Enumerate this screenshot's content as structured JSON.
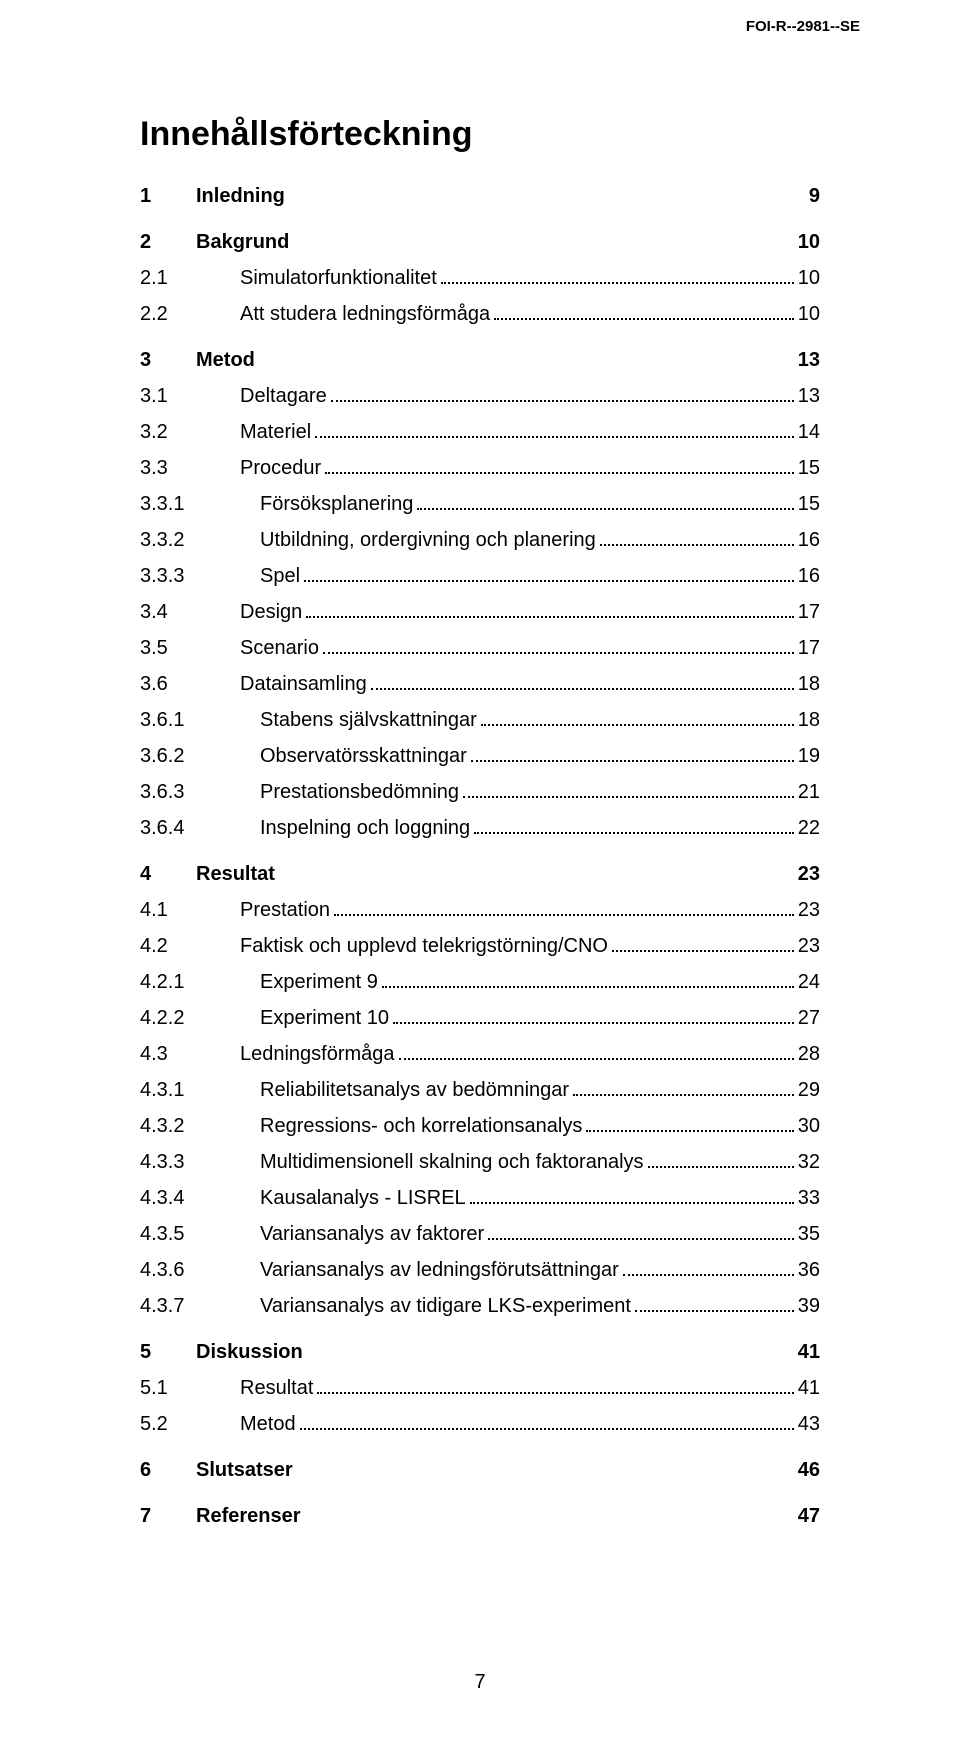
{
  "header": "FOI-R--2981--SE",
  "title": "Innehållsförteckning",
  "page_number": "7",
  "toc": [
    {
      "level": 1,
      "num": "1",
      "label": "Inledning",
      "page": "9",
      "bold": true,
      "dots": false
    },
    {
      "level": 1,
      "num": "2",
      "label": "Bakgrund",
      "page": "10",
      "bold": true,
      "dots": false
    },
    {
      "level": 2,
      "num": "2.1",
      "label": "Simulatorfunktionalitet",
      "page": "10",
      "bold": false,
      "dots": true
    },
    {
      "level": 2,
      "num": "2.2",
      "label": "Att studera ledningsförmåga",
      "page": "10",
      "bold": false,
      "dots": true
    },
    {
      "level": 1,
      "num": "3",
      "label": "Metod",
      "page": "13",
      "bold": true,
      "dots": false
    },
    {
      "level": 2,
      "num": "3.1",
      "label": "Deltagare",
      "page": "13",
      "bold": false,
      "dots": true
    },
    {
      "level": 2,
      "num": "3.2",
      "label": "Materiel",
      "page": "14",
      "bold": false,
      "dots": true
    },
    {
      "level": 2,
      "num": "3.3",
      "label": "Procedur",
      "page": "15",
      "bold": false,
      "dots": true
    },
    {
      "level": 3,
      "num": "3.3.1",
      "label": "Försöksplanering",
      "page": "15",
      "bold": false,
      "dots": true
    },
    {
      "level": 3,
      "num": "3.3.2",
      "label": "Utbildning, ordergivning och planering",
      "page": "16",
      "bold": false,
      "dots": true
    },
    {
      "level": 3,
      "num": "3.3.3",
      "label": "Spel",
      "page": "16",
      "bold": false,
      "dots": true
    },
    {
      "level": 2,
      "num": "3.4",
      "label": "Design",
      "page": "17",
      "bold": false,
      "dots": true
    },
    {
      "level": 2,
      "num": "3.5",
      "label": "Scenario",
      "page": "17",
      "bold": false,
      "dots": true
    },
    {
      "level": 2,
      "num": "3.6",
      "label": "Datainsamling",
      "page": "18",
      "bold": false,
      "dots": true
    },
    {
      "level": 3,
      "num": "3.6.1",
      "label": "Stabens självskattningar",
      "page": "18",
      "bold": false,
      "dots": true
    },
    {
      "level": 3,
      "num": "3.6.2",
      "label": "Observatörsskattningar",
      "page": "19",
      "bold": false,
      "dots": true
    },
    {
      "level": 3,
      "num": "3.6.3",
      "label": "Prestationsbedömning",
      "page": "21",
      "bold": false,
      "dots": true
    },
    {
      "level": 3,
      "num": "3.6.4",
      "label": "Inspelning och loggning",
      "page": "22",
      "bold": false,
      "dots": true
    },
    {
      "level": 1,
      "num": "4",
      "label": "Resultat",
      "page": "23",
      "bold": true,
      "dots": false
    },
    {
      "level": 2,
      "num": "4.1",
      "label": "Prestation",
      "page": "23",
      "bold": false,
      "dots": true
    },
    {
      "level": 2,
      "num": "4.2",
      "label": "Faktisk och upplevd telekrigstörning/CNO",
      "page": "23",
      "bold": false,
      "dots": true
    },
    {
      "level": 3,
      "num": "4.2.1",
      "label": "Experiment 9",
      "page": "24",
      "bold": false,
      "dots": true
    },
    {
      "level": 3,
      "num": "4.2.2",
      "label": "Experiment 10",
      "page": "27",
      "bold": false,
      "dots": true
    },
    {
      "level": 2,
      "num": "4.3",
      "label": "Ledningsförmåga",
      "page": "28",
      "bold": false,
      "dots": true
    },
    {
      "level": 3,
      "num": "4.3.1",
      "label": "Reliabilitetsanalys av bedömningar",
      "page": "29",
      "bold": false,
      "dots": true
    },
    {
      "level": 3,
      "num": "4.3.2",
      "label": "Regressions- och korrelationsanalys",
      "page": "30",
      "bold": false,
      "dots": true
    },
    {
      "level": 3,
      "num": "4.3.3",
      "label": "Multidimensionell skalning och faktoranalys",
      "page": "32",
      "bold": false,
      "dots": true
    },
    {
      "level": 3,
      "num": "4.3.4",
      "label": "Kausalanalys - LISREL",
      "page": "33",
      "bold": false,
      "dots": true
    },
    {
      "level": 3,
      "num": "4.3.5",
      "label": "Variansanalys av faktorer",
      "page": "35",
      "bold": false,
      "dots": true
    },
    {
      "level": 3,
      "num": "4.3.6",
      "label": "Variansanalys av ledningsförutsättningar",
      "page": "36",
      "bold": false,
      "dots": true
    },
    {
      "level": 3,
      "num": "4.3.7",
      "label": "Variansanalys av tidigare LKS-experiment",
      "page": "39",
      "bold": false,
      "dots": true
    },
    {
      "level": 1,
      "num": "5",
      "label": "Diskussion",
      "page": "41",
      "bold": true,
      "dots": false
    },
    {
      "level": 2,
      "num": "5.1",
      "label": "Resultat",
      "page": "41",
      "bold": false,
      "dots": true
    },
    {
      "level": 2,
      "num": "5.2",
      "label": "Metod",
      "page": "43",
      "bold": false,
      "dots": true
    },
    {
      "level": 1,
      "num": "6",
      "label": "Slutsatser",
      "page": "46",
      "bold": true,
      "dots": false
    },
    {
      "level": 1,
      "num": "7",
      "label": "Referenser",
      "page": "47",
      "bold": true,
      "dots": false
    }
  ]
}
